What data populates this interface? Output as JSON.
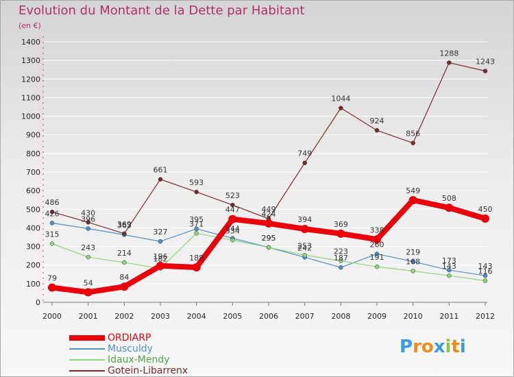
{
  "title": "Evolution du Montant de la Dette par Habitant",
  "unit": "(en €)",
  "logo": {
    "letters": [
      "P",
      "r",
      "o",
      "x",
      "i",
      "t",
      "i"
    ],
    "colors": [
      "#3a9be0",
      "#f28a1a",
      "#f28a1a",
      "#3a9be0",
      "#8cc63f",
      "#f28a1a",
      "#3a9be0"
    ]
  },
  "chart_data": {
    "type": "line",
    "title": "Evolution du Montant de la Dette par Habitant",
    "ylabel": "(en €)",
    "xlabel": "",
    "x": [
      "2000",
      "2001",
      "2002",
      "2003",
      "2004",
      "2005",
      "2006",
      "2007",
      "2008",
      "2009",
      "2010",
      "2011",
      "2012"
    ],
    "ylim": [
      0,
      1400
    ],
    "yticks": [
      "0",
      "100",
      "200",
      "300",
      "400",
      "500",
      "600",
      "700",
      "800",
      "900",
      "1000",
      "1100",
      "1200",
      "1300",
      "1400"
    ],
    "grid": "horizontal",
    "legend": "bottom-left",
    "series": [
      {
        "name": "ORDIARP",
        "color": "#e8000b",
        "values": [
          79,
          54,
          84,
          196,
          188,
          447,
          424,
          394,
          369,
          338,
          549,
          508,
          450
        ],
        "labels": [
          "79",
          "54",
          "84",
          "196",
          "188",
          "447",
          "424",
          "394",
          "369",
          "338",
          "549",
          "508",
          "450"
        ]
      },
      {
        "name": "Musculdy",
        "color": "#4f8fc8",
        "values": [
          426,
          396,
          363,
          327,
          395,
          344,
          295,
          242,
          187,
          260,
          219,
          173,
          143
        ],
        "labels": [
          "426",
          "396",
          "363",
          "327",
          "395",
          "344",
          "295",
          "242",
          "187",
          "260",
          "219",
          "173",
          "143"
        ]
      },
      {
        "name": "Idaux-Mendy",
        "color": "#8fd47a",
        "values": [
          315,
          243,
          214,
          182,
          371,
          334,
          295,
          253,
          223,
          191,
          168,
          143,
          116
        ],
        "labels": [
          "315",
          "243",
          "214",
          "182",
          "371",
          "334",
          "295",
          "253",
          "223",
          "191",
          "168",
          "143",
          "116"
        ]
      },
      {
        "name": "Gotein-Libarrenx",
        "color": "#7a2a2a",
        "values": [
          486,
          430,
          369,
          661,
          593,
          523,
          449,
          749,
          1044,
          924,
          856,
          1288,
          1243
        ],
        "labels": [
          "486",
          "430",
          "369",
          "661",
          "593",
          "523",
          "449",
          "749",
          "1044",
          "924",
          "856",
          "1288",
          "1243"
        ]
      }
    ]
  }
}
